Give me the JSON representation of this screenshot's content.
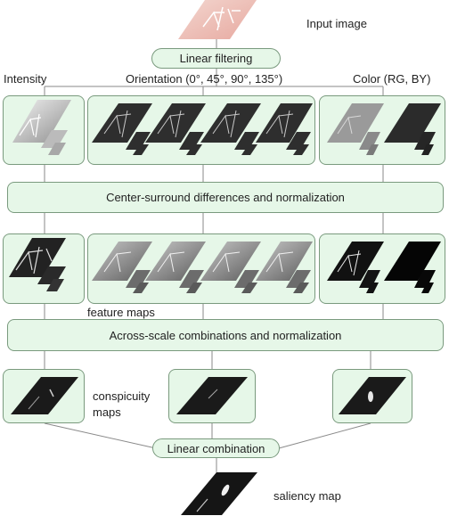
{
  "input_label": "Input image",
  "linear_filtering": "Linear filtering",
  "channels": {
    "intensity": "Intensity",
    "orientation": "Orientation (0°, 45°, 90°, 135°)",
    "color": "Color (RG, BY)"
  },
  "center_surround": "Center-surround differences and normalization",
  "feature_maps": "feature maps",
  "across_scale": "Across-scale combinations and normalization",
  "conspicuity": [
    "conspicuity",
    "maps"
  ],
  "linear_combination": "Linear combination",
  "saliency_map": "saliency map",
  "colors": {
    "box_fill": "#e6f7e8",
    "box_border": "#7a9a7e",
    "line": "#8a8a8a"
  }
}
